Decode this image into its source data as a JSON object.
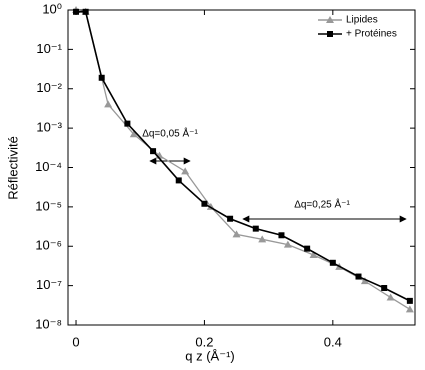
{
  "chart_data": {
    "type": "line",
    "y_label": "Réflectivité",
    "x_label": "q z (Å⁻¹)",
    "log_y": true,
    "xlim": [
      -0.0125,
      0.528
    ],
    "ylim": [
      1e-08,
      1
    ],
    "xticks": [
      0,
      0.2,
      0.4
    ],
    "yticks": [
      {
        "value": 1,
        "label": "10⁰"
      },
      {
        "value": 0.1,
        "label": "10⁻¹"
      },
      {
        "value": 0.01,
        "label": "10⁻²"
      },
      {
        "value": 0.001,
        "label": "10⁻³"
      },
      {
        "value": 0.0001,
        "label": "10⁻⁴"
      },
      {
        "value": 1e-05,
        "label": "10⁻⁵"
      },
      {
        "value": 1e-06,
        "label": "10⁻⁶"
      },
      {
        "value": 1e-07,
        "label": "10⁻⁷"
      },
      {
        "value": 1e-08,
        "label": "10⁻⁸"
      }
    ],
    "annotations": [
      "Δq=0,05 Å⁻¹",
      "Δq=0,25 Å⁻¹"
    ],
    "legend": "top-right",
    "series": [
      {
        "name": "Lipides",
        "color": "#999999",
        "marker": "triangle",
        "x": [
          0,
          0.015,
          0.05,
          0.09,
          0.13,
          0.17,
          0.21,
          0.25,
          0.29,
          0.33,
          0.37,
          0.41,
          0.45,
          0.49,
          0.52
        ],
        "values": [
          1,
          0.9,
          0.004,
          0.0007,
          0.0002,
          8e-05,
          1e-05,
          2e-06,
          1.5e-06,
          1.1e-06,
          6e-07,
          3e-07,
          1.3e-07,
          5e-08,
          2.5e-08
        ]
      },
      {
        "name": "+ Protéines",
        "color": "#000000",
        "marker": "square",
        "x": [
          0,
          0.015,
          0.04,
          0.08,
          0.12,
          0.16,
          0.2,
          0.24,
          0.28,
          0.32,
          0.36,
          0.4,
          0.44,
          0.48,
          0.52
        ],
        "values": [
          0.9,
          0.9,
          0.019,
          0.0013,
          0.00026,
          4.7e-05,
          1.2e-05,
          5e-06,
          2.8e-06,
          1.9e-06,
          8.7e-07,
          3.8e-07,
          1.7e-07,
          8.7e-08,
          4.1e-08
        ]
      }
    ]
  }
}
